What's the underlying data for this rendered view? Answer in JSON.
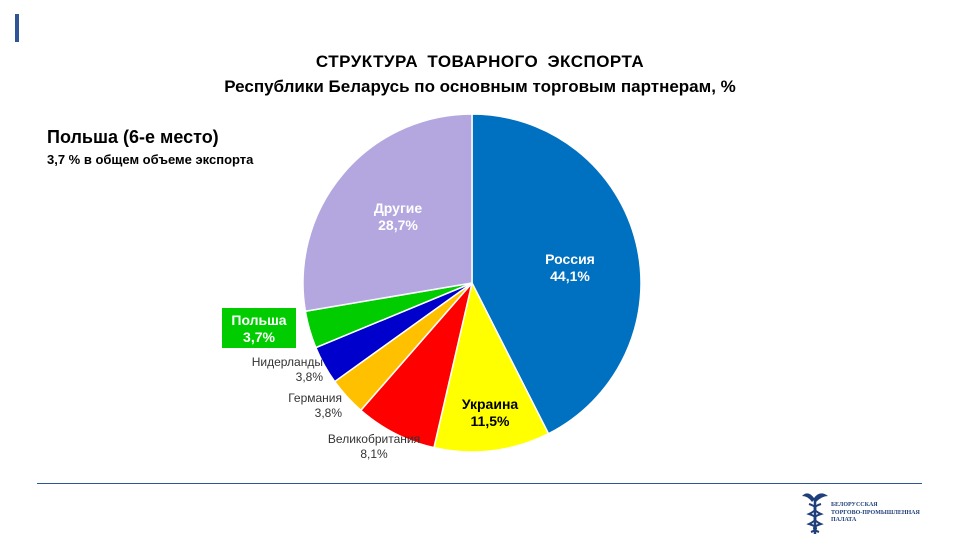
{
  "header": {
    "title_line1": "СТРУКТУРА ТОВАРНОГО ЭКСПОРТА",
    "title_line2": "Республики Беларусь по основным торговым партнерам, %"
  },
  "note": {
    "headline": "Польша (6-е место)",
    "subline": "3,7 % в общем объеме экспорта"
  },
  "logo": {
    "text": "БЕЛОРУССКАЯ\nТОРГОВО-ПРОМЫШЛЕННАЯ\nПАЛАТА"
  },
  "chart_data": {
    "type": "pie",
    "title": "СТРУКТУРА ТОВАРНОГО ЭКСПОРТА Республики Беларусь по основным торговым партнерам, %",
    "slices": [
      {
        "label": "Россия",
        "value": 44.1,
        "value_label": "44,1%",
        "color": "#0070c0"
      },
      {
        "label": "Украина",
        "value": 11.5,
        "value_label": "11,5%",
        "color": "#ffff00"
      },
      {
        "label": "Великобритания",
        "value": 8.1,
        "value_label": "8,1%",
        "color": "#ff0000"
      },
      {
        "label": "Германия",
        "value": 3.8,
        "value_label": "3,8%",
        "color": "#ffc000"
      },
      {
        "label": "Нидерланды",
        "value": 3.8,
        "value_label": "3,8%",
        "color": "#0000cc"
      },
      {
        "label": "Польша",
        "value": 3.7,
        "value_label": "3,7%",
        "color": "#00cc00"
      },
      {
        "label": "Другие",
        "value": 28.7,
        "value_label": "28,7%",
        "color": "#b4a7e0"
      }
    ]
  }
}
